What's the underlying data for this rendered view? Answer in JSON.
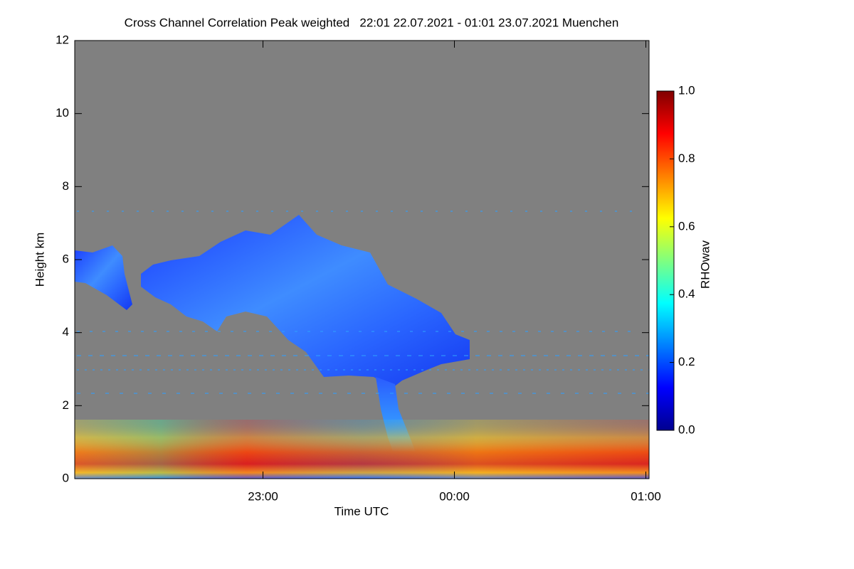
{
  "chart_data": {
    "type": "heatmap",
    "title": "Cross Channel Correlation Peak weighted   22:01 22.07.2021 - 01:01 23.07.2021 Muenchen",
    "x_label": "Time UTC",
    "y_label": "Height km",
    "xlim": [
      1321,
      1501
    ],
    "xticks": [
      {
        "value": 1380,
        "label": "23:00"
      },
      {
        "value": 1440,
        "label": "00:00"
      },
      {
        "value": 1500,
        "label": "01:00"
      }
    ],
    "ylim": [
      0,
      12
    ],
    "yticks": [
      0,
      2,
      4,
      6,
      8,
      10,
      12
    ],
    "colorbar": {
      "label": "RHOwav",
      "colormap": "jet",
      "lim": [
        0,
        1
      ],
      "ticks": [
        {
          "value": 0,
          "label": "0.0"
        },
        {
          "value": 0.2,
          "label": "0.2"
        },
        {
          "value": 0.4,
          "label": "0.4"
        },
        {
          "value": 0.6,
          "label": "0.6"
        },
        {
          "value": 0.8,
          "label": "0.8"
        },
        {
          "value": 1,
          "label": "1.0"
        }
      ]
    },
    "background_color": "#808080"
  }
}
